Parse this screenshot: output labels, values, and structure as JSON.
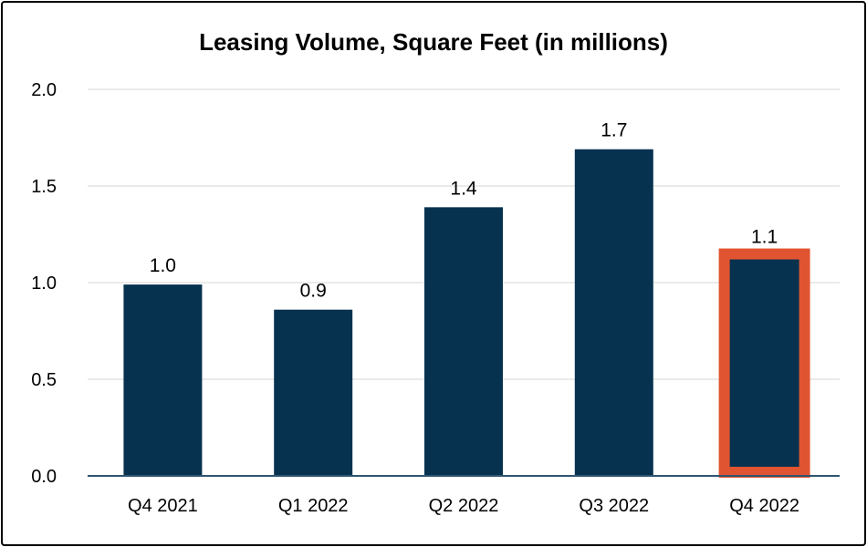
{
  "chart_data": {
    "type": "bar",
    "title": "Leasing Volume, Square Feet (in millions)",
    "xlabel": "",
    "ylabel": "",
    "categories": [
      "Q4 2021",
      "Q1 2022",
      "Q2 2022",
      "Q3 2022",
      "Q4 2022"
    ],
    "values": [
      0.99,
      0.86,
      1.39,
      1.69,
      1.12
    ],
    "data_labels": [
      "1.0",
      "0.9",
      "1.4",
      "1.7",
      "1.1"
    ],
    "ylim": [
      0,
      2.0
    ],
    "yticks": [
      "0.0",
      "0.5",
      "1.0",
      "1.5",
      "2.0"
    ],
    "grid": true,
    "legend": "none",
    "highlighted_category": "Q4 2022",
    "colors": {
      "bar": "#07324f",
      "highlight": "#e15431",
      "grid": "#e3e3e3",
      "axis": "#2f5570"
    }
  }
}
